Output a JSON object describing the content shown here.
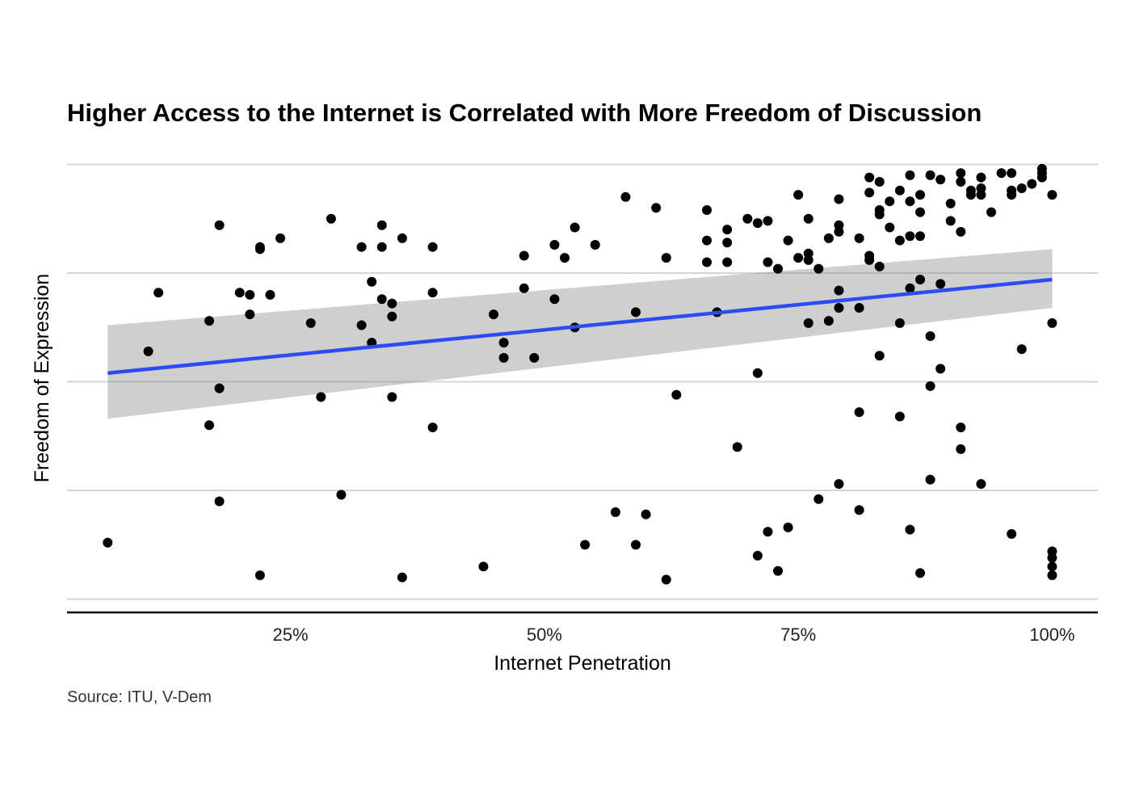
{
  "chart_data": {
    "type": "scatter",
    "title": "Higher Access to the Internet is Correlated with More Freedom of Discussion",
    "xlabel": "Internet Penetration",
    "ylabel": "Freedom of Expression",
    "caption": "Source: ITU, V-Dem",
    "x_ticks": [
      "25%",
      "50%",
      "75%",
      "100%"
    ],
    "x_tick_values": [
      25,
      50,
      75,
      100
    ],
    "xlim": [
      3,
      104.5
    ],
    "ylim": [
      -0.05,
      2.05
    ],
    "y_gridlines": [
      0,
      0.5,
      1,
      1.5,
      2
    ],
    "y_tick_labels_shown": false,
    "grid": "horizontal major lines only",
    "legend": "none",
    "point_color": "#000000",
    "fit_color": "#2a4cf2",
    "band_color": "#8c8c8c",
    "fit_line": {
      "x": [
        7,
        100
      ],
      "y": [
        1.04,
        1.47
      ]
    },
    "confidence_band": {
      "x": [
        7,
        100
      ],
      "lower": [
        0.83,
        1.34
      ],
      "upper": [
        1.26,
        1.61
      ]
    },
    "points": [
      [
        7,
        0.26
      ],
      [
        11,
        1.14
      ],
      [
        12,
        1.41
      ],
      [
        17,
        1.28
      ],
      [
        17,
        0.8
      ],
      [
        18,
        1.72
      ],
      [
        18,
        0.97
      ],
      [
        18,
        0.45
      ],
      [
        20,
        1.41
      ],
      [
        21,
        1.4
      ],
      [
        21,
        1.31
      ],
      [
        22,
        1.61
      ],
      [
        22,
        1.62
      ],
      [
        22,
        0.11
      ],
      [
        23,
        1.4
      ],
      [
        24,
        1.66
      ],
      [
        27,
        1.27
      ],
      [
        28,
        0.93
      ],
      [
        29,
        1.75
      ],
      [
        30,
        0.48
      ],
      [
        32,
        1.62
      ],
      [
        32,
        1.26
      ],
      [
        33,
        1.46
      ],
      [
        33,
        1.18
      ],
      [
        34,
        1.72
      ],
      [
        34,
        1.62
      ],
      [
        34,
        1.38
      ],
      [
        35,
        1.36
      ],
      [
        35,
        1.3
      ],
      [
        35,
        0.93
      ],
      [
        36,
        1.66
      ],
      [
        36,
        0.1
      ],
      [
        39,
        1.62
      ],
      [
        39,
        1.41
      ],
      [
        39,
        0.79
      ],
      [
        44,
        0.15
      ],
      [
        45,
        1.31
      ],
      [
        46,
        1.18
      ],
      [
        46,
        1.11
      ],
      [
        48,
        1.58
      ],
      [
        48,
        1.43
      ],
      [
        49,
        1.11
      ],
      [
        51,
        1.63
      ],
      [
        51,
        1.38
      ],
      [
        52,
        1.57
      ],
      [
        53,
        1.71
      ],
      [
        53,
        1.25
      ],
      [
        54,
        0.25
      ],
      [
        55,
        1.63
      ],
      [
        57,
        0.4
      ],
      [
        58,
        1.85
      ],
      [
        59,
        1.32
      ],
      [
        59,
        0.25
      ],
      [
        60,
        0.39
      ],
      [
        61,
        1.8
      ],
      [
        62,
        1.57
      ],
      [
        62,
        0.09
      ],
      [
        63,
        0.94
      ],
      [
        66,
        1.79
      ],
      [
        66,
        1.65
      ],
      [
        66,
        1.55
      ],
      [
        67,
        1.32
      ],
      [
        68,
        1.7
      ],
      [
        68,
        1.64
      ],
      [
        68,
        1.55
      ],
      [
        69,
        0.7
      ],
      [
        70,
        1.75
      ],
      [
        71,
        1.73
      ],
      [
        71,
        1.04
      ],
      [
        71,
        0.2
      ],
      [
        72,
        1.74
      ],
      [
        72,
        1.55
      ],
      [
        72,
        0.31
      ],
      [
        73,
        1.52
      ],
      [
        73,
        0.13
      ],
      [
        74,
        1.65
      ],
      [
        74,
        0.33
      ],
      [
        75,
        1.86
      ],
      [
        75,
        1.57
      ],
      [
        76,
        1.75
      ],
      [
        76,
        1.59
      ],
      [
        76,
        1.56
      ],
      [
        76,
        1.27
      ],
      [
        77,
        1.52
      ],
      [
        77,
        0.46
      ],
      [
        78,
        1.66
      ],
      [
        78,
        1.28
      ],
      [
        79,
        1.84
      ],
      [
        79,
        1.72
      ],
      [
        79,
        1.69
      ],
      [
        79,
        1.42
      ],
      [
        79,
        1.34
      ],
      [
        79,
        0.53
      ],
      [
        81,
        1.66
      ],
      [
        81,
        1.34
      ],
      [
        81,
        0.86
      ],
      [
        81,
        0.41
      ],
      [
        82,
        1.94
      ],
      [
        82,
        1.87
      ],
      [
        82,
        1.58
      ],
      [
        82,
        1.56
      ],
      [
        83,
        1.92
      ],
      [
        83,
        1.79
      ],
      [
        83,
        1.77
      ],
      [
        83,
        1.53
      ],
      [
        83,
        1.12
      ],
      [
        84,
        1.83
      ],
      [
        84,
        1.71
      ],
      [
        85,
        1.88
      ],
      [
        85,
        1.65
      ],
      [
        85,
        1.27
      ],
      [
        85,
        0.84
      ],
      [
        86,
        1.95
      ],
      [
        86,
        1.83
      ],
      [
        86,
        1.67
      ],
      [
        86,
        1.43
      ],
      [
        86,
        0.32
      ],
      [
        87,
        1.86
      ],
      [
        87,
        1.78
      ],
      [
        87,
        1.67
      ],
      [
        87,
        1.47
      ],
      [
        87,
        0.12
      ],
      [
        88,
        1.95
      ],
      [
        88,
        1.21
      ],
      [
        88,
        0.98
      ],
      [
        88,
        0.55
      ],
      [
        89,
        1.93
      ],
      [
        89,
        1.45
      ],
      [
        89,
        1.06
      ],
      [
        90,
        1.82
      ],
      [
        90,
        1.74
      ],
      [
        91,
        1.96
      ],
      [
        91,
        1.92
      ],
      [
        91,
        1.69
      ],
      [
        91,
        0.79
      ],
      [
        91,
        0.69
      ],
      [
        92,
        1.88
      ],
      [
        92,
        1.86
      ],
      [
        93,
        1.94
      ],
      [
        93,
        1.89
      ],
      [
        93,
        1.86
      ],
      [
        93,
        0.53
      ],
      [
        94,
        1.78
      ],
      [
        95,
        1.96
      ],
      [
        96,
        1.96
      ],
      [
        96,
        1.88
      ],
      [
        96,
        1.86
      ],
      [
        96,
        0.3
      ],
      [
        97,
        1.89
      ],
      [
        97,
        1.15
      ],
      [
        98,
        1.91
      ],
      [
        99,
        1.98
      ],
      [
        99,
        1.96
      ],
      [
        99,
        1.94
      ],
      [
        100,
        1.86
      ],
      [
        100,
        1.27
      ],
      [
        100,
        0.22
      ],
      [
        100,
        0.19
      ],
      [
        100,
        0.15
      ],
      [
        100,
        0.11
      ]
    ]
  }
}
